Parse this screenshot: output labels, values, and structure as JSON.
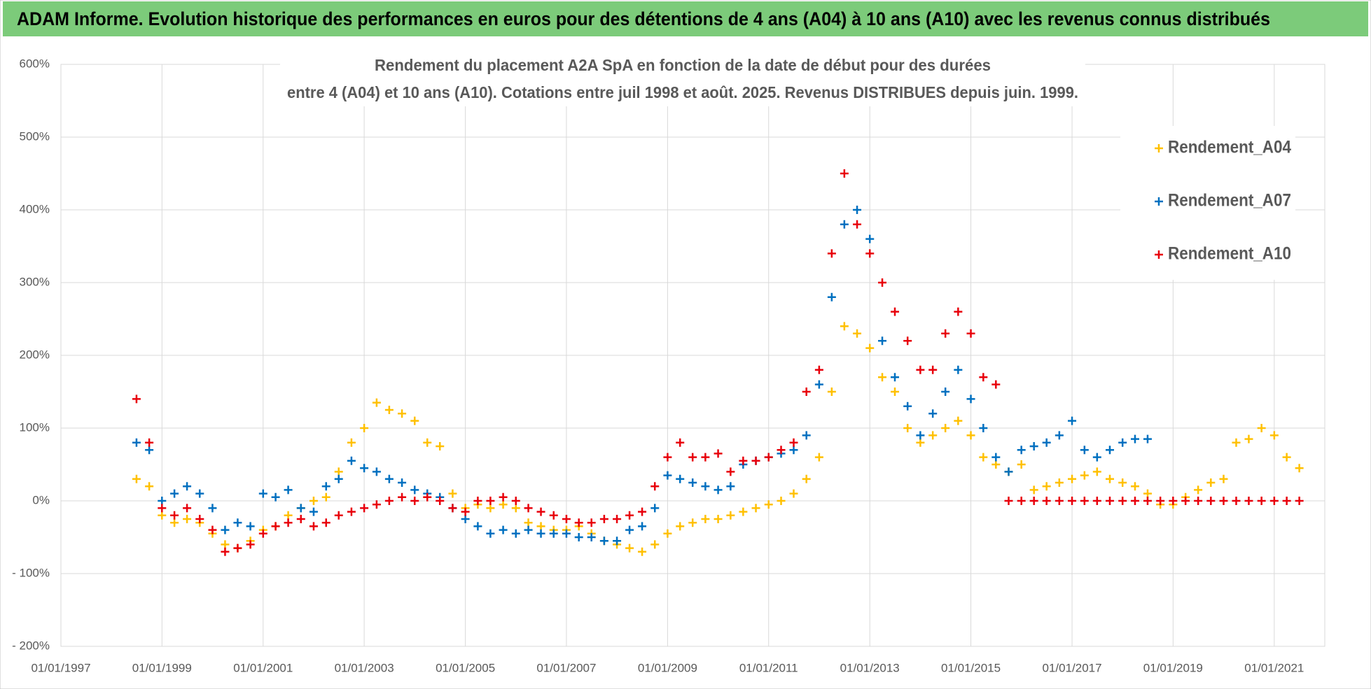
{
  "header": {
    "title": "ADAM Informe. Evolution historique des performances en euros pour des détentions de 4 ans (A04) à 10 ans (A10) avec les revenus connus distribués"
  },
  "chart_data": {
    "type": "scatter",
    "title_lines": [
      "Rendement du placement A2A SpA en fonction de la date de début pour des durées",
      "entre 4 (A04) et 10 ans (A10).  Cotations entre juil 1998 et août. 2025.  Revenus DISTRIBUES depuis juin. 1999."
    ],
    "x": [
      "01/07/1998",
      "01/10/1998",
      "01/01/1999",
      "01/04/1999",
      "01/07/1999",
      "01/10/1999",
      "01/01/2000",
      "01/04/2000",
      "01/07/2000",
      "01/10/2000",
      "01/01/2001",
      "01/04/2001",
      "01/07/2001",
      "01/10/2001",
      "01/01/2002",
      "01/04/2002",
      "01/07/2002",
      "01/10/2002",
      "01/01/2003",
      "01/04/2003",
      "01/07/2003",
      "01/10/2003",
      "01/01/2004",
      "01/04/2004",
      "01/07/2004",
      "01/10/2004",
      "01/01/2005",
      "01/04/2005",
      "01/07/2005",
      "01/10/2005",
      "01/01/2006",
      "01/04/2006",
      "01/07/2006",
      "01/10/2006",
      "01/01/2007",
      "01/04/2007",
      "01/07/2007",
      "01/10/2007",
      "01/01/2008",
      "01/04/2008",
      "01/07/2008",
      "01/10/2008",
      "01/01/2009",
      "01/04/2009",
      "01/07/2009",
      "01/10/2009",
      "01/01/2010",
      "01/04/2010",
      "01/07/2010",
      "01/10/2010",
      "01/01/2011",
      "01/04/2011",
      "01/07/2011",
      "01/10/2011",
      "01/01/2012",
      "01/04/2012",
      "01/07/2012",
      "01/10/2012",
      "01/01/2013",
      "01/04/2013",
      "01/07/2013",
      "01/10/2013",
      "01/01/2014",
      "01/04/2014",
      "01/07/2014",
      "01/10/2014",
      "01/01/2015",
      "01/04/2015",
      "01/07/2015",
      "01/10/2015",
      "01/01/2016",
      "01/04/2016",
      "01/07/2016",
      "01/10/2016",
      "01/01/2017",
      "01/04/2017",
      "01/07/2017",
      "01/10/2017",
      "01/01/2018",
      "01/04/2018",
      "01/07/2018",
      "01/10/2018",
      "01/01/2019",
      "01/04/2019",
      "01/07/2019",
      "01/10/2019",
      "01/01/2020",
      "01/04/2020",
      "01/07/2020",
      "01/10/2020",
      "01/01/2021",
      "01/04/2021",
      "01/07/2021"
    ],
    "series": [
      {
        "name": "Rendement_A04",
        "color": "#ffc000",
        "values": [
          30,
          20,
          -20,
          -30,
          -25,
          -30,
          -45,
          -60,
          -65,
          -55,
          -40,
          -35,
          -20,
          -10,
          0,
          5,
          40,
          80,
          100,
          135,
          125,
          120,
          110,
          80,
          75,
          10,
          -10,
          -5,
          -10,
          -5,
          -10,
          -30,
          -35,
          -40,
          -40,
          -35,
          -45,
          -55,
          -60,
          -65,
          -70,
          -60,
          -45,
          -35,
          -30,
          -25,
          -25,
          -20,
          -15,
          -10,
          -5,
          0,
          10,
          30,
          60,
          150,
          240,
          230,
          210,
          170,
          150,
          100,
          80,
          90,
          100,
          110,
          90,
          60,
          50,
          40,
          50,
          15,
          20,
          25,
          30,
          35,
          40,
          30,
          25,
          20,
          10,
          -5,
          -5,
          5,
          15,
          25,
          30,
          80,
          85,
          100,
          90,
          60,
          45
        ]
      },
      {
        "name": "Rendement_A07",
        "color": "#0070c0",
        "values": [
          80,
          70,
          0,
          10,
          20,
          10,
          -10,
          -40,
          -30,
          -35,
          10,
          5,
          15,
          -10,
          -15,
          20,
          30,
          55,
          45,
          40,
          30,
          25,
          15,
          10,
          5,
          -10,
          -25,
          -35,
          -45,
          -40,
          -45,
          -40,
          -45,
          -45,
          -45,
          -50,
          -50,
          -55,
          -55,
          -40,
          -35,
          -10,
          35,
          30,
          25,
          20,
          15,
          20,
          50,
          55,
          60,
          65,
          70,
          90,
          160,
          280,
          380,
          400,
          360,
          220,
          170,
          130,
          90,
          120,
          150,
          180,
          140,
          100,
          60,
          40,
          70,
          75,
          80,
          90,
          110,
          70,
          60,
          70,
          80,
          85,
          85,
          null,
          null,
          null,
          null,
          null,
          null,
          null,
          null,
          null,
          null,
          null,
          null
        ]
      },
      {
        "name": "Rendement_A10",
        "color": "#e8000b",
        "values": [
          140,
          80,
          -10,
          -20,
          -10,
          -25,
          -40,
          -70,
          -65,
          -60,
          -45,
          -35,
          -30,
          -25,
          -35,
          -30,
          -20,
          -15,
          -10,
          -5,
          0,
          5,
          0,
          5,
          0,
          -10,
          -15,
          0,
          0,
          5,
          0,
          -10,
          -15,
          -20,
          -25,
          -30,
          -30,
          -25,
          -25,
          -20,
          -15,
          20,
          60,
          80,
          60,
          60,
          65,
          40,
          55,
          55,
          60,
          70,
          80,
          150,
          180,
          340,
          450,
          380,
          340,
          300,
          260,
          220,
          180,
          180,
          230,
          260,
          230,
          170,
          160,
          0,
          0,
          0,
          0,
          0,
          0,
          0,
          0,
          0,
          0,
          0,
          0,
          0,
          0,
          0,
          0,
          0,
          0,
          0,
          0,
          0,
          0,
          0,
          0
        ]
      }
    ],
    "xlim": [
      "01/01/1997",
      "01/01/2022"
    ],
    "xticks": [
      "01/01/1997",
      "01/01/1999",
      "01/01/2001",
      "01/01/2003",
      "01/01/2005",
      "01/01/2007",
      "01/01/2009",
      "01/01/2011",
      "01/01/2013",
      "01/01/2015",
      "01/01/2017",
      "01/01/2019",
      "01/01/2021"
    ],
    "ylim": [
      -200,
      600
    ],
    "yticks": [
      {
        "value": -200,
        "label": "- 200%"
      },
      {
        "value": -100,
        "label": "- 100%"
      },
      {
        "value": 0,
        "label": "0%"
      },
      {
        "value": 100,
        "label": "100%"
      },
      {
        "value": 200,
        "label": "200%"
      },
      {
        "value": 300,
        "label": "300%"
      },
      {
        "value": 400,
        "label": "400%"
      },
      {
        "value": 500,
        "label": "500%"
      },
      {
        "value": 600,
        "label": "600%"
      }
    ],
    "grid": true,
    "legend": "right"
  }
}
